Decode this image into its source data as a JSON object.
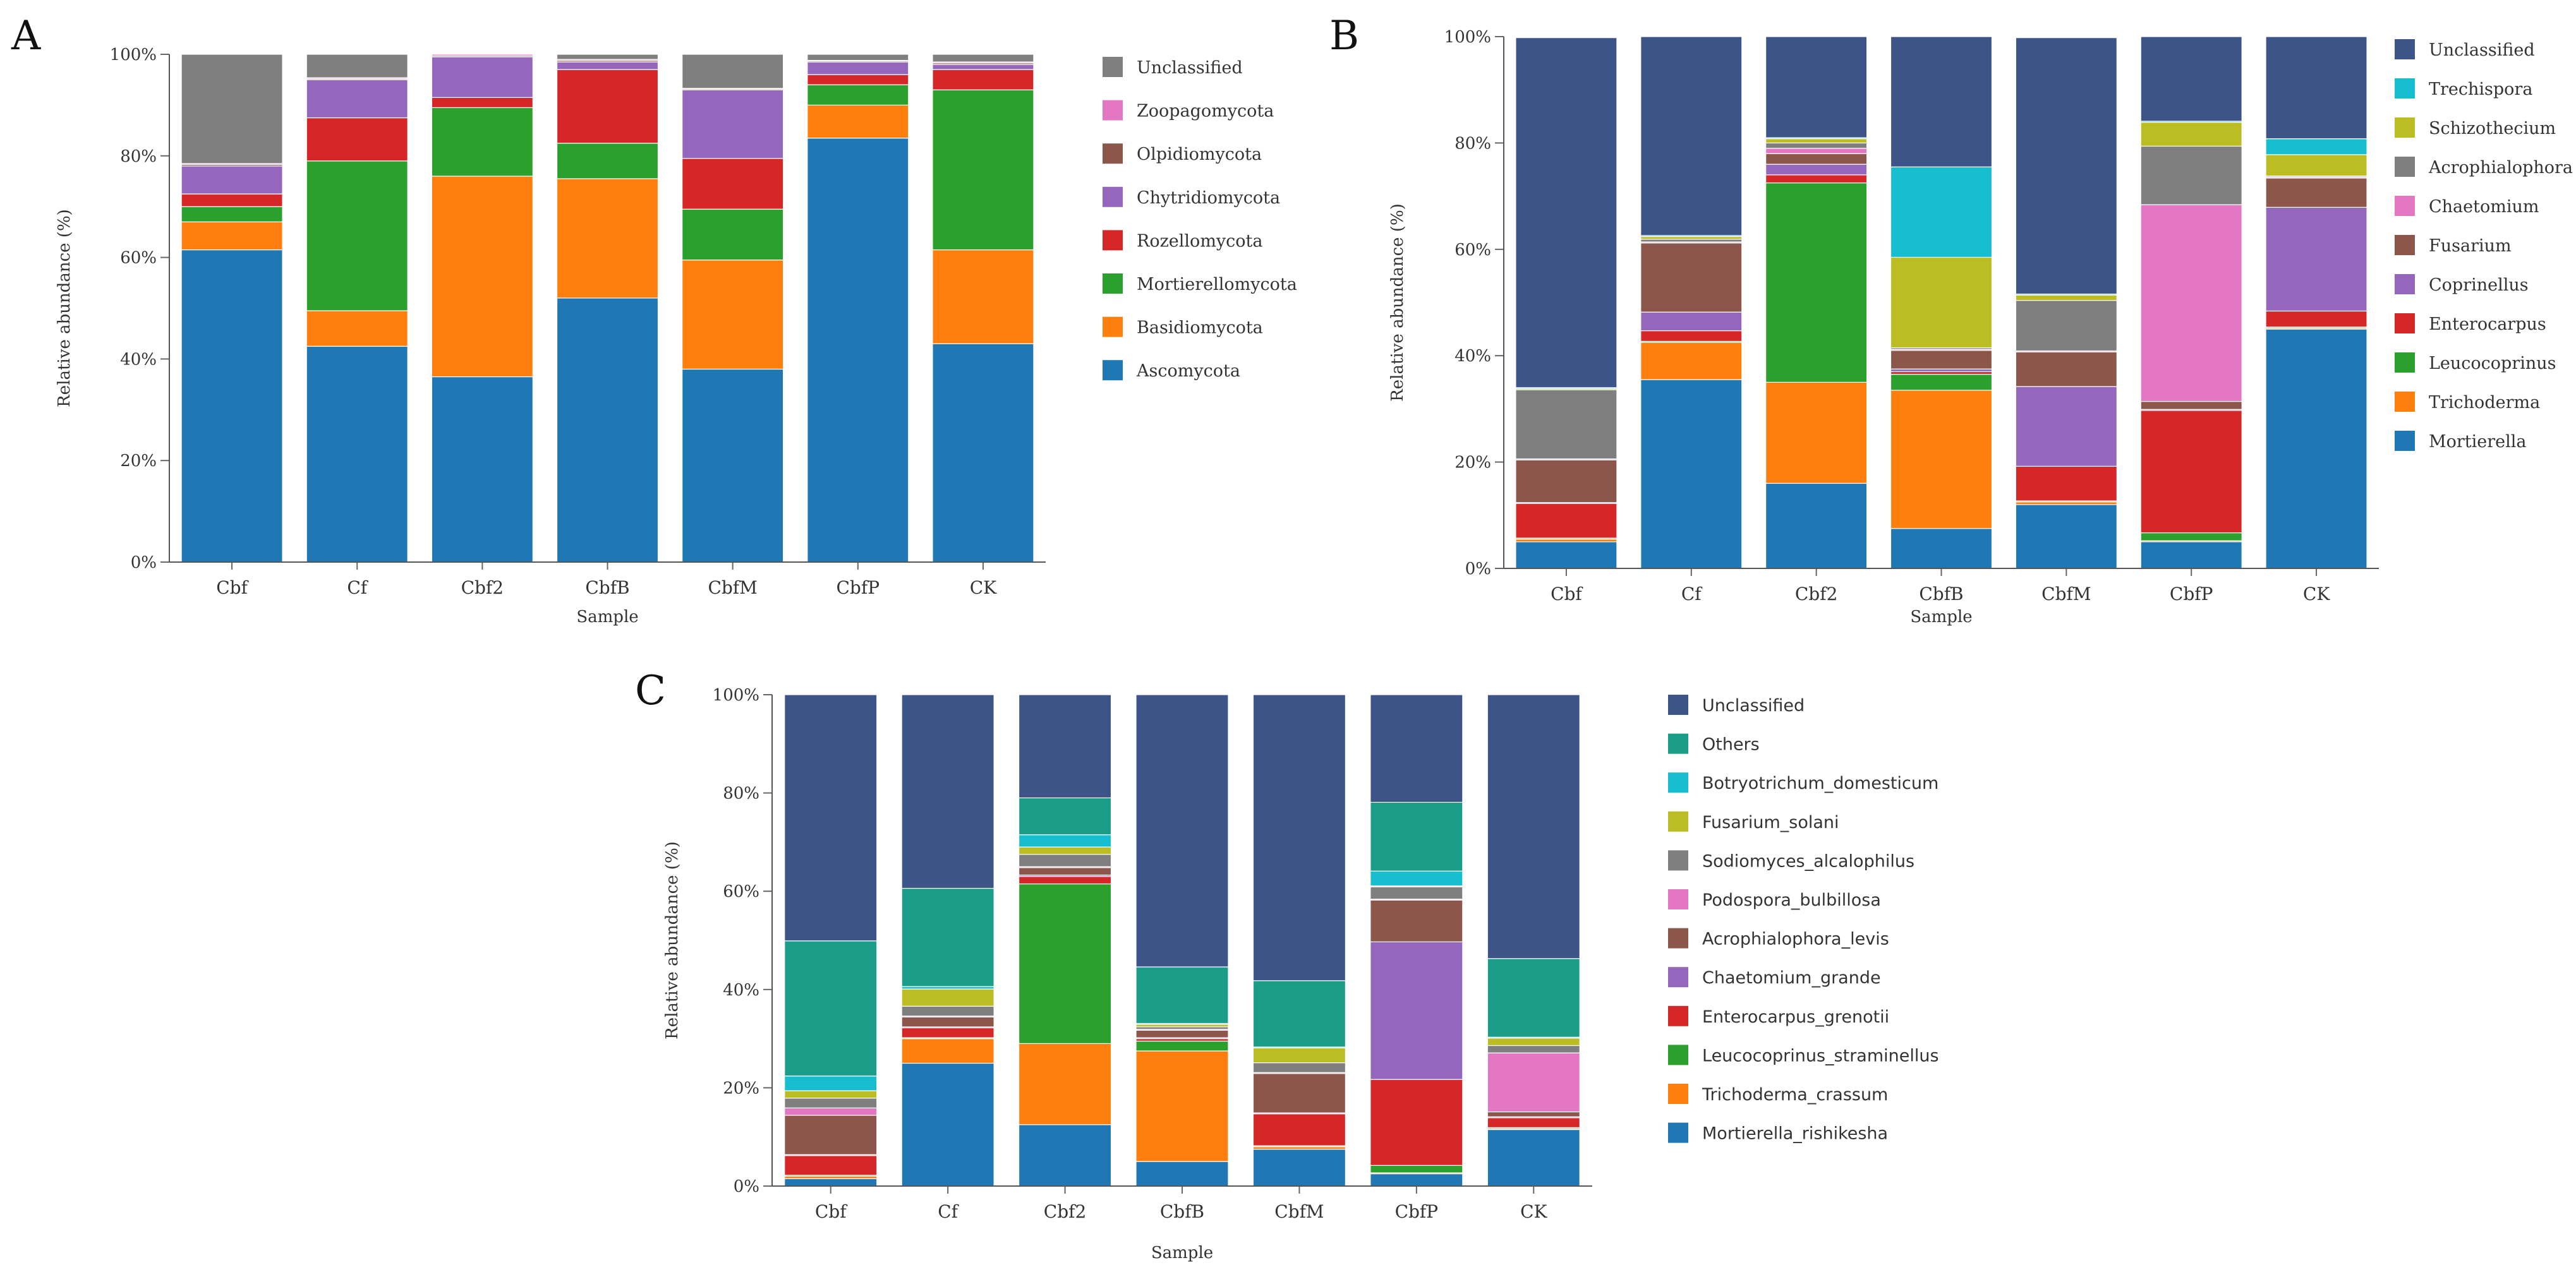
{
  "colors": {
    "Ascomycota": "#1f77b4",
    "Basidiomycota": "#ff7f0e",
    "Mortierellomycota": "#2ca02c",
    "Rozellomycota": "#d62728",
    "Chytridiomycota": "#9467bd",
    "Olpidiomycota": "#8c564b",
    "Zoopagomycota": "#e377c2",
    "UnclassifiedGray": "#7f7f7f",
    "UnclassifiedNavy": "#3c5488",
    "Trechispora": "#17becf",
    "Schizothecium": "#bcbd22",
    "Others": "#1a9e8a"
  },
  "chart_data": [
    {
      "panel": "A",
      "type": "bar",
      "stacked": true,
      "xlabel": "Sample",
      "ylabel": "Relative abundance (%)",
      "ylim": [
        0,
        100
      ],
      "yticks": [
        "0%",
        "20%",
        "40%",
        "60%",
        "80%",
        "100%"
      ],
      "categories": [
        "Cbf",
        "Cf",
        "Cbf2",
        "CbfB",
        "CbfM",
        "CbfP",
        "CK"
      ],
      "series": [
        {
          "name": "Ascomycota",
          "color": "#1f77b4",
          "values": [
            61.5,
            42.5,
            36.5,
            52,
            38,
            83.5,
            43
          ]
        },
        {
          "name": "Basidiomycota",
          "color": "#ff7f0e",
          "values": [
            5.5,
            7,
            39.5,
            23.5,
            21.5,
            6.5,
            18.5
          ]
        },
        {
          "name": "Mortierellomycota",
          "color": "#2ca02c",
          "values": [
            3,
            29.5,
            13.5,
            7,
            10,
            4,
            31.5
          ]
        },
        {
          "name": "Rozellomycota",
          "color": "#d62728",
          "values": [
            2.5,
            8.5,
            2,
            14.5,
            10,
            2,
            4
          ]
        },
        {
          "name": "Chytridiomycota",
          "color": "#9467bd",
          "values": [
            5.5,
            7.5,
            8,
            1.5,
            13.5,
            2.5,
            1
          ]
        },
        {
          "name": "Olpidiomycota",
          "color": "#8c564b",
          "values": [
            0.3,
            0.2,
            0.2,
            0.3,
            0.2,
            0.2,
            0.3
          ]
        },
        {
          "name": "Zoopagomycota",
          "color": "#e377c2",
          "values": [
            0.2,
            0.2,
            0.3,
            0.2,
            0.1,
            0.1,
            0.2
          ]
        },
        {
          "name": "Unclassified",
          "color": "#7f7f7f",
          "values": [
            21.5,
            4.6,
            0,
            1,
            6.7,
            1.2,
            1.5
          ]
        }
      ]
    },
    {
      "panel": "B",
      "type": "bar",
      "stacked": true,
      "xlabel": "Sample",
      "ylabel": "Relative abundance (%)",
      "ylim": [
        0,
        100
      ],
      "yticks": [
        "0%",
        "20%",
        "40%",
        "60%",
        "80%",
        "100%"
      ],
      "categories": [
        "Cbf",
        "Cf",
        "Cbf2",
        "CbfB",
        "CbfM",
        "CbfP",
        "CK"
      ],
      "series": [
        {
          "name": "Mortierella",
          "color": "#1f77b4",
          "values": [
            5,
            35.5,
            16,
            7.5,
            12,
            5,
            45
          ]
        },
        {
          "name": "Trichoderma",
          "color": "#ff7f0e",
          "values": [
            0.5,
            7,
            19,
            26,
            0.5,
            0.2,
            0.2
          ]
        },
        {
          "name": "Leucocoprinus",
          "color": "#2ca02c",
          "values": [
            0.2,
            0.2,
            37.5,
            3,
            0.2,
            1.5,
            0.2
          ]
        },
        {
          "name": "Enterocarpus",
          "color": "#d62728",
          "values": [
            6.5,
            2,
            1.5,
            0.5,
            6.5,
            23,
            3
          ]
        },
        {
          "name": "Coprinellus",
          "color": "#9467bd",
          "values": [
            0.2,
            3.5,
            2,
            0.5,
            15,
            0.2,
            19.5
          ]
        },
        {
          "name": "Fusarium",
          "color": "#8c564b",
          "values": [
            8,
            13,
            2,
            3.5,
            6.5,
            1.5,
            5.5
          ]
        },
        {
          "name": "Chaetomium",
          "color": "#e377c2",
          "values": [
            0.2,
            0.2,
            1,
            0.2,
            0.2,
            37,
            0.2
          ]
        },
        {
          "name": "Acrophialophora",
          "color": "#7f7f7f",
          "values": [
            13,
            0.5,
            1,
            0.3,
            9.5,
            11,
            0.2
          ]
        },
        {
          "name": "Schizothecium",
          "color": "#bcbd22",
          "values": [
            0.2,
            0.5,
            0.8,
            17,
            1,
            4.5,
            4
          ]
        },
        {
          "name": "Trechispora",
          "color": "#17becf",
          "values": [
            0.2,
            0.2,
            0.2,
            17,
            0.2,
            0.2,
            3
          ]
        },
        {
          "name": "Unclassified",
          "color": "#3c5488",
          "values": [
            65.8,
            37.4,
            19.0,
            24.5,
            48.2,
            15.9,
            19.2
          ]
        }
      ]
    },
    {
      "panel": "C",
      "type": "bar",
      "stacked": true,
      "xlabel": "Sample",
      "ylabel": "Relative abundance (%)",
      "ylim": [
        0,
        100
      ],
      "yticks": [
        "0%",
        "20%",
        "40%",
        "60%",
        "80%",
        "100%"
      ],
      "categories": [
        "Cbf",
        "Cf",
        "Cbf2",
        "CbfB",
        "CbfM",
        "CbfP",
        "CK"
      ],
      "series": [
        {
          "name": "Mortierella_rishikesha",
          "color": "#1f77b4",
          "values": [
            1.5,
            25,
            12.5,
            5,
            7.5,
            2.5,
            11.5
          ]
        },
        {
          "name": "Trichoderma_crassum",
          "color": "#ff7f0e",
          "values": [
            0.5,
            5,
            16.5,
            22.5,
            0.5,
            0.2,
            0.2
          ]
        },
        {
          "name": "Leucocoprinus_straminellus",
          "color": "#2ca02c",
          "values": [
            0.2,
            0.2,
            32.5,
            2,
            0.2,
            1.5,
            0.2
          ]
        },
        {
          "name": "Enterocarpus_grenotii",
          "color": "#d62728",
          "values": [
            4,
            2,
            1.5,
            0.5,
            6.5,
            17.5,
            2
          ]
        },
        {
          "name": "Chaetomium_grande",
          "color": "#9467bd",
          "values": [
            0.2,
            0.2,
            0.3,
            0.2,
            0.2,
            28,
            0.2
          ]
        },
        {
          "name": "Acrophialophora_levis",
          "color": "#8c564b",
          "values": [
            8,
            2,
            1.5,
            1.5,
            8,
            8.5,
            1
          ]
        },
        {
          "name": "Podospora_bulbillosa",
          "color": "#e377c2",
          "values": [
            1.5,
            0.2,
            0.2,
            0.2,
            0.2,
            0.2,
            12
          ]
        },
        {
          "name": "Sodiomyces_alcalophilus",
          "color": "#7f7f7f",
          "values": [
            2,
            2,
            2.5,
            0.5,
            2,
            2.5,
            1.5
          ]
        },
        {
          "name": "Fusarium_solani",
          "color": "#bcbd22",
          "values": [
            1.5,
            3.5,
            1.5,
            0.5,
            3,
            0.2,
            1.5
          ]
        },
        {
          "name": "Botryotrichum_domesticum",
          "color": "#17becf",
          "values": [
            3,
            0.5,
            2.5,
            0.2,
            0.2,
            3,
            0.2
          ]
        },
        {
          "name": "Others",
          "color": "#1a9e8a",
          "values": [
            27.5,
            20,
            7.5,
            11.5,
            13.5,
            14,
            16
          ]
        },
        {
          "name": "Unclassified",
          "color": "#3c5488",
          "values": [
            50.1,
            39.4,
            21.0,
            55.4,
            58.2,
            21.9,
            53.7
          ]
        }
      ]
    }
  ],
  "legend_order": {
    "A": [
      "Unclassified",
      "Zoopagomycota",
      "Olpidiomycota",
      "Chytridiomycota",
      "Rozellomycota",
      "Mortierellomycota",
      "Basidiomycota",
      "Ascomycota"
    ],
    "B": [
      "Unclassified",
      "Trechispora",
      "Schizothecium",
      "Acrophialophora",
      "Chaetomium",
      "Fusarium",
      "Coprinellus",
      "Enterocarpus",
      "Leucocoprinus",
      "Trichoderma",
      "Mortierella"
    ],
    "C": [
      "Unclassified",
      "Others",
      "Botryotrichum_domesticum",
      "Fusarium_solani",
      "Sodiomyces_alcalophilus",
      "Podospora_bulbillosa",
      "Acrophialophora_levis",
      "Chaetomium_grande",
      "Enterocarpus_grenotii",
      "Leucocoprinus_straminellus",
      "Trichoderma_crassum",
      "Mortierella_rishikesha"
    ]
  }
}
